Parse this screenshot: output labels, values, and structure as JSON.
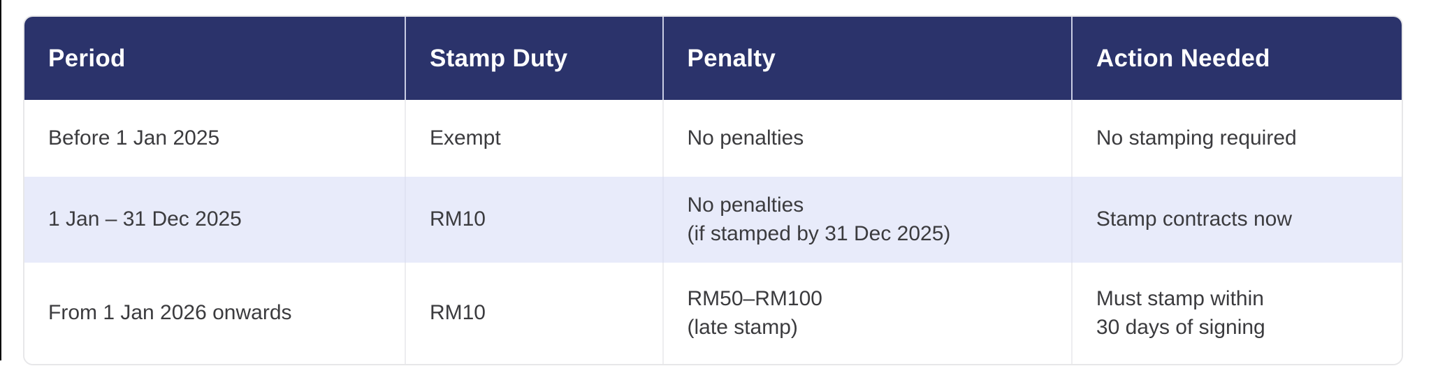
{
  "table": {
    "headers": [
      "Period",
      "Stamp Duty",
      "Penalty",
      "Action Needed"
    ],
    "rows": [
      {
        "period": "Before 1 Jan 2025",
        "stamp_duty": "Exempt",
        "penalty": "No penalties",
        "action": "No stamping required"
      },
      {
        "period": "1 Jan – 31 Dec 2025",
        "stamp_duty": "RM10",
        "penalty": "No penalties\n(if stamped by 31 Dec 2025)",
        "action": "Stamp contracts now"
      },
      {
        "period": "From 1 Jan 2026 onwards",
        "stamp_duty": "RM10",
        "penalty": "RM50–RM100\n(late stamp)",
        "action": "Must stamp within\n30 days of signing"
      }
    ],
    "colors": {
      "header_bg": "#2b336b",
      "header_text": "#ffffff",
      "row_alt_bg": "#e8ebfa",
      "body_text": "#3b3b3e",
      "card_border": "#e7e7e9",
      "column_separator": "#ededf0"
    }
  }
}
